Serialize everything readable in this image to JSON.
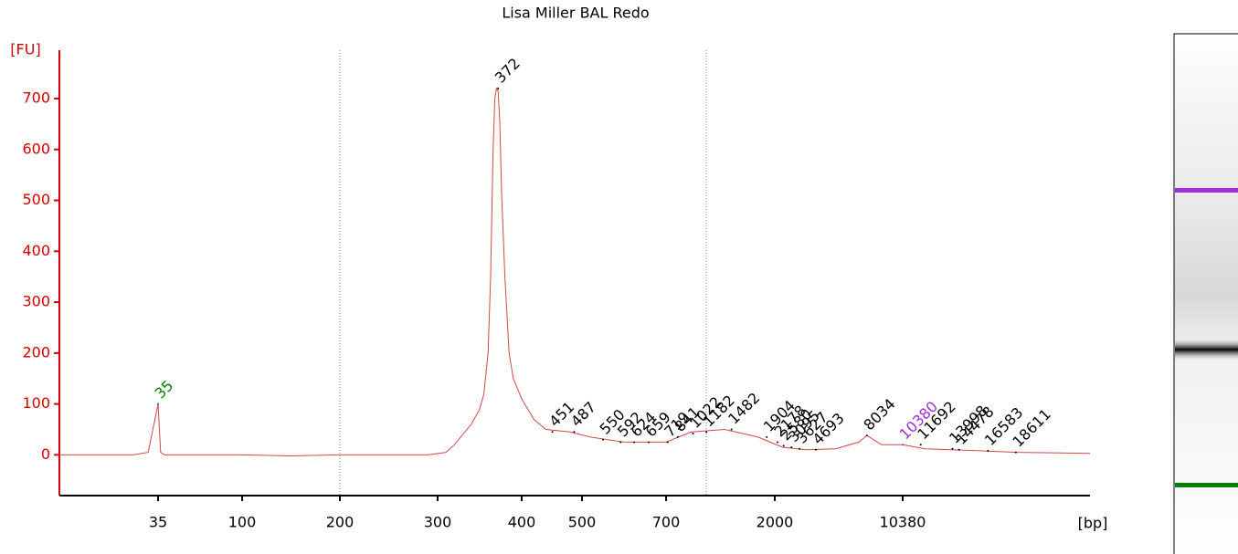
{
  "chart_data": {
    "type": "line",
    "title": "Lisa Miller BAL Redo",
    "y_label": "[FU]",
    "x_label": "[bp]",
    "color": "#d04848",
    "axis_color": "#d00000",
    "xlim": [
      15,
      24000
    ],
    "xticks": [
      35,
      100,
      200,
      300,
      400,
      500,
      700,
      2000,
      10380
    ],
    "ylim": [
      -80,
      795
    ],
    "yticks": [
      0,
      100,
      200,
      300,
      400,
      500,
      600,
      700
    ],
    "x": [
      15,
      30,
      33,
      35,
      37,
      40,
      100,
      150,
      200,
      250,
      290,
      310,
      320,
      330,
      340,
      350,
      355,
      360,
      363,
      366,
      368,
      370,
      372,
      374,
      376,
      380,
      385,
      390,
      400,
      420,
      440,
      480,
      520,
      600,
      700,
      850,
      1000,
      1400,
      1800,
      2500,
      4000,
      6000,
      7500,
      8034,
      9000,
      10380,
      12000,
      16000,
      18611,
      24000
    ],
    "y": [
      0,
      0,
      5,
      100,
      5,
      0,
      0,
      -2,
      0,
      0,
      0,
      5,
      20,
      40,
      60,
      90,
      120,
      200,
      350,
      600,
      700,
      720,
      715,
      650,
      520,
      350,
      200,
      150,
      110,
      70,
      50,
      45,
      35,
      25,
      25,
      35,
      45,
      50,
      35,
      15,
      10,
      12,
      25,
      38,
      20,
      20,
      12,
      8,
      5,
      3
    ],
    "peaks": [
      {
        "size": 35,
        "fu": 100,
        "color": "#008000"
      },
      {
        "size": 372,
        "fu": 720,
        "color": "#000000"
      },
      {
        "size": 451,
        "fu": 45,
        "color": "#000000"
      },
      {
        "size": 487,
        "fu": 45,
        "color": "#000000"
      },
      {
        "size": 550,
        "fu": 30,
        "color": "#000000"
      },
      {
        "size": 592,
        "fu": 25,
        "color": "#000000"
      },
      {
        "size": 624,
        "fu": 25,
        "color": "#000000"
      },
      {
        "size": 659,
        "fu": 25,
        "color": "#000000"
      },
      {
        "size": 719,
        "fu": 25,
        "color": "#000000"
      },
      {
        "size": 841,
        "fu": 35,
        "color": "#000000"
      },
      {
        "size": 1022,
        "fu": 42,
        "color": "#000000"
      },
      {
        "size": 1182,
        "fu": 45,
        "color": "#000000"
      },
      {
        "size": 1482,
        "fu": 50,
        "color": "#000000"
      },
      {
        "size": 1904,
        "fu": 35,
        "color": "#000000"
      },
      {
        "size": 2178,
        "fu": 25,
        "color": "#000000"
      },
      {
        "size": 2580,
        "fu": 18,
        "color": "#000000"
      },
      {
        "size": 3095,
        "fu": 15,
        "color": "#000000"
      },
      {
        "size": 3627,
        "fu": 12,
        "color": "#000000"
      },
      {
        "size": 4693,
        "fu": 10,
        "color": "#000000"
      },
      {
        "size": 8034,
        "fu": 38,
        "color": "#000000"
      },
      {
        "size": 10380,
        "fu": 20,
        "color": "#9b30d9"
      },
      {
        "size": 11692,
        "fu": 20,
        "color": "#000000"
      },
      {
        "size": 13998,
        "fu": 12,
        "color": "#000000"
      },
      {
        "size": 14478,
        "fu": 10,
        "color": "#000000"
      },
      {
        "size": 16583,
        "fu": 8,
        "color": "#000000"
      },
      {
        "size": 18611,
        "fu": 5,
        "color": "#000000"
      }
    ]
  }
}
